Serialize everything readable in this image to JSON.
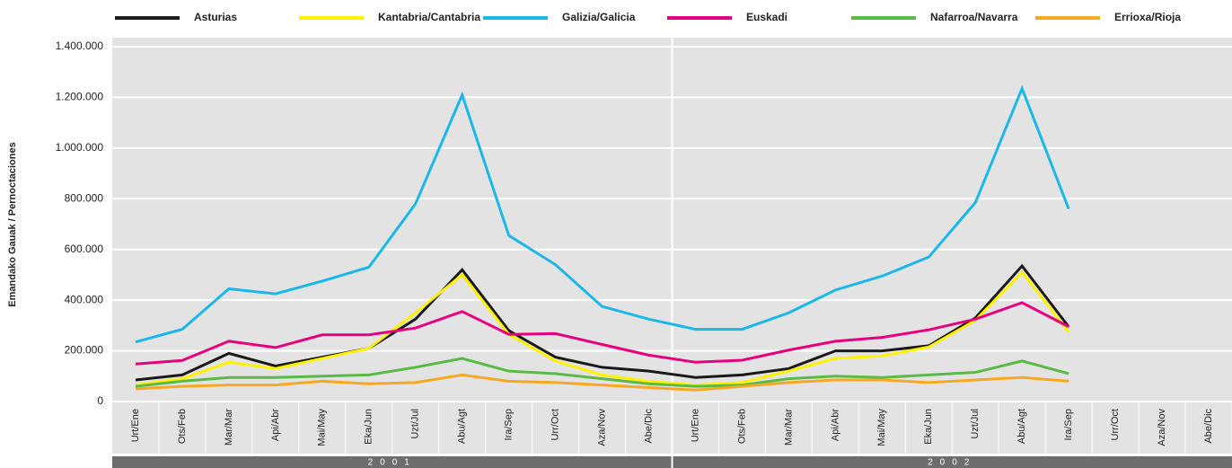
{
  "chart_data": {
    "type": "line",
    "y_label": "Emandako Gauak / Pernoctaciones",
    "categories": [
      "Urt/Ene",
      "Ots/Feb",
      "Mar/Mar",
      "Api/Abr",
      "Mai/May",
      "Eka/Jun",
      "Uzt/Jul",
      "Abu/Agt",
      "Ira/Sep",
      "Urr/Oct",
      "Aza/Nov",
      "Abe/Dic",
      "Urt/Ene",
      "Ots/Feb",
      "Mar/Mar",
      "Api/Abr",
      "Mai/May",
      "Eka/Jun",
      "Uzt/Jul",
      "Abu/Agt",
      "Ira/Sep",
      "Urr/Oct",
      "Aza/Nov",
      "Abe/Dic"
    ],
    "groups": [
      "2001",
      "2002"
    ],
    "ylim": [
      0,
      1400000
    ],
    "yticks": [
      0,
      {
        "value": 200000,
        "label": "200.000"
      },
      {
        "value": 400000,
        "label": "400.000"
      },
      {
        "value": 600000,
        "label": "600.000"
      },
      {
        "value": 800000,
        "label": "800.000"
      },
      {
        "value": 1000000,
        "label": "1.000.000"
      },
      {
        "value": 1200000,
        "label": "1.200.000"
      },
      {
        "value": 1400000,
        "label": "1.400.000"
      }
    ],
    "grid": true,
    "legend": "top",
    "series": [
      {
        "name": "Asturias",
        "color": "#1a1a1a",
        "values": [
          85000,
          105000,
          190000,
          140000,
          175000,
          210000,
          325000,
          520000,
          280000,
          175000,
          135000,
          120000,
          95000,
          105000,
          130000,
          200000,
          200000,
          220000,
          330000,
          535000,
          295000,
          null,
          null,
          null
        ]
      },
      {
        "name": "Kantabria/Cantabria",
        "color": "#fff200",
        "values": [
          65000,
          90000,
          155000,
          130000,
          170000,
          210000,
          350000,
          500000,
          265000,
          160000,
          105000,
          80000,
          65000,
          75000,
          120000,
          170000,
          180000,
          215000,
          320000,
          510000,
          275000,
          null,
          null,
          null
        ]
      },
      {
        "name": "Galizia/Galicia",
        "color": "#1ab7ea",
        "values": [
          235000,
          285000,
          445000,
          425000,
          475000,
          530000,
          780000,
          1210000,
          655000,
          540000,
          375000,
          325000,
          285000,
          285000,
          350000,
          440000,
          495000,
          570000,
          785000,
          1235000,
          760000,
          null,
          null,
          null
        ]
      },
      {
        "name": "Euskadi",
        "color": "#e6007e",
        "values": [
          148000,
          162000,
          238000,
          213000,
          263000,
          263000,
          290000,
          355000,
          265000,
          268000,
          225000,
          183000,
          155000,
          163000,
          203000,
          238000,
          253000,
          283000,
          325000,
          390000,
          295000,
          null,
          null,
          null
        ]
      },
      {
        "name": "Nafarroa/Navarra",
        "color": "#5bb947",
        "values": [
          60000,
          80000,
          95000,
          95000,
          100000,
          105000,
          135000,
          170000,
          120000,
          110000,
          90000,
          70000,
          60000,
          65000,
          90000,
          100000,
          95000,
          105000,
          115000,
          160000,
          110000,
          null,
          null,
          null
        ]
      },
      {
        "name": "Errioxa/Rioja",
        "color": "#f7a823",
        "values": [
          50000,
          60000,
          65000,
          65000,
          80000,
          70000,
          75000,
          105000,
          80000,
          75000,
          65000,
          55000,
          45000,
          60000,
          75000,
          85000,
          85000,
          75000,
          85000,
          95000,
          80000,
          null,
          null,
          null
        ]
      }
    ]
  }
}
